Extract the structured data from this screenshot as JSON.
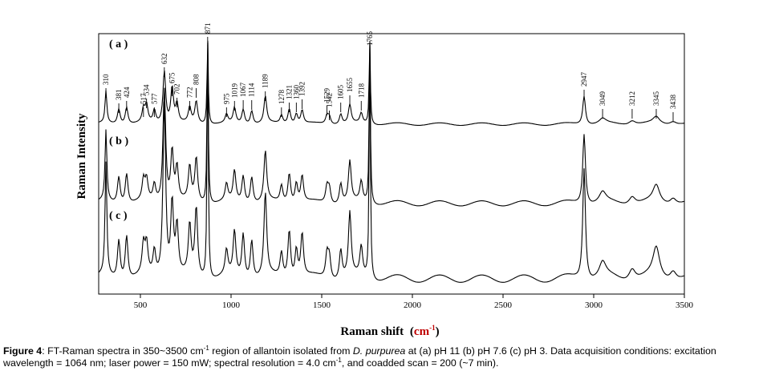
{
  "chart_data": {
    "type": "line",
    "xlabel_main": "Raman shift",
    "xlabel_unit_open": "(",
    "xlabel_unit": "cm",
    "xlabel_unit_sup": "-1",
    "xlabel_unit_close": ")",
    "ylabel": "Raman Intensity",
    "xlim": [
      270,
      3500
    ],
    "xticks": [
      500,
      1000,
      1500,
      2000,
      2500,
      3000,
      3500
    ],
    "xtick_labels": [
      "500",
      "1000",
      "1500",
      "2000",
      "2500",
      "3000",
      "3500"
    ],
    "grid": false,
    "legend": "none",
    "line_color": "#000000",
    "series": [
      {
        "name": "( a )",
        "peaks": [
          [
            310,
            0.38
          ],
          [
            381,
            0.18
          ],
          [
            424,
            0.2
          ],
          [
            517,
            0.16
          ],
          [
            534,
            0.2
          ],
          [
            577,
            0.15
          ],
          [
            632,
            0.62
          ],
          [
            675,
            0.42
          ],
          [
            702,
            0.22
          ],
          [
            772,
            0.18
          ],
          [
            808,
            0.26
          ],
          [
            871,
            1.0
          ],
          [
            975,
            0.1
          ],
          [
            1019,
            0.18
          ],
          [
            1067,
            0.17
          ],
          [
            1114,
            0.16
          ],
          [
            1189,
            0.32
          ],
          [
            1278,
            0.1
          ],
          [
            1321,
            0.18
          ],
          [
            1360,
            0.12
          ],
          [
            1392,
            0.16
          ],
          [
            1529,
            0.1
          ],
          [
            1542,
            0.09
          ],
          [
            1605,
            0.12
          ],
          [
            1655,
            0.22
          ],
          [
            1718,
            0.12
          ],
          [
            1765,
            0.98
          ],
          [
            2947,
            0.34
          ],
          [
            3049,
            0.06
          ],
          [
            3212,
            0.05
          ],
          [
            3345,
            0.08
          ],
          [
            3438,
            0.04
          ]
        ]
      },
      {
        "name": "( b )",
        "peaks": [
          [
            310,
            0.42
          ],
          [
            381,
            0.16
          ],
          [
            424,
            0.18
          ],
          [
            517,
            0.12
          ],
          [
            534,
            0.12
          ],
          [
            577,
            0.1
          ],
          [
            632,
            0.68
          ],
          [
            675,
            0.3
          ],
          [
            702,
            0.2
          ],
          [
            772,
            0.2
          ],
          [
            808,
            0.26
          ],
          [
            871,
            1.0
          ],
          [
            975,
            0.1
          ],
          [
            1019,
            0.18
          ],
          [
            1067,
            0.16
          ],
          [
            1114,
            0.16
          ],
          [
            1189,
            0.3
          ],
          [
            1278,
            0.1
          ],
          [
            1321,
            0.18
          ],
          [
            1360,
            0.12
          ],
          [
            1392,
            0.16
          ],
          [
            1529,
            0.1
          ],
          [
            1542,
            0.09
          ],
          [
            1605,
            0.12
          ],
          [
            1655,
            0.24
          ],
          [
            1718,
            0.12
          ],
          [
            1765,
            0.98
          ],
          [
            2947,
            0.42
          ],
          [
            3049,
            0.06
          ],
          [
            3212,
            0.05
          ],
          [
            3345,
            0.1
          ],
          [
            3438,
            0.04
          ]
        ]
      },
      {
        "name": "( c )",
        "peaks": [
          [
            310,
            0.46
          ],
          [
            381,
            0.16
          ],
          [
            424,
            0.18
          ],
          [
            517,
            0.12
          ],
          [
            534,
            0.12
          ],
          [
            577,
            0.1
          ],
          [
            632,
            0.72
          ],
          [
            675,
            0.3
          ],
          [
            702,
            0.2
          ],
          [
            772,
            0.2
          ],
          [
            808,
            0.28
          ],
          [
            871,
            1.0
          ],
          [
            975,
            0.1
          ],
          [
            1019,
            0.18
          ],
          [
            1067,
            0.18
          ],
          [
            1114,
            0.16
          ],
          [
            1189,
            0.34
          ],
          [
            1278,
            0.1
          ],
          [
            1321,
            0.2
          ],
          [
            1360,
            0.12
          ],
          [
            1392,
            0.18
          ],
          [
            1529,
            0.1
          ],
          [
            1542,
            0.09
          ],
          [
            1605,
            0.12
          ],
          [
            1655,
            0.26
          ],
          [
            1718,
            0.12
          ],
          [
            1765,
            0.98
          ],
          [
            2947,
            0.46
          ],
          [
            3049,
            0.06
          ],
          [
            3212,
            0.05
          ],
          [
            3345,
            0.12
          ],
          [
            3438,
            0.04
          ]
        ]
      }
    ],
    "annotations": [
      {
        "x": 310,
        "label": "310"
      },
      {
        "x": 381,
        "label": "381"
      },
      {
        "x": 424,
        "label": "424"
      },
      {
        "x": 517,
        "label": "517"
      },
      {
        "x": 534,
        "label": "534"
      },
      {
        "x": 577,
        "label": "577"
      },
      {
        "x": 632,
        "label": "632"
      },
      {
        "x": 675,
        "label": "675"
      },
      {
        "x": 702,
        "label": "702"
      },
      {
        "x": 772,
        "label": "772"
      },
      {
        "x": 808,
        "label": "808"
      },
      {
        "x": 871,
        "label": "871"
      },
      {
        "x": 975,
        "label": "975"
      },
      {
        "x": 1019,
        "label": "1019"
      },
      {
        "x": 1067,
        "label": "1067"
      },
      {
        "x": 1114,
        "label": "1114"
      },
      {
        "x": 1189,
        "label": "1189"
      },
      {
        "x": 1278,
        "label": "1278"
      },
      {
        "x": 1321,
        "label": "1321"
      },
      {
        "x": 1360,
        "label": "1360"
      },
      {
        "x": 1392,
        "label": "1392"
      },
      {
        "x": 1529,
        "label": "1529"
      },
      {
        "x": 1542,
        "label": "1542"
      },
      {
        "x": 1605,
        "label": "1605"
      },
      {
        "x": 1655,
        "label": "1655"
      },
      {
        "x": 1718,
        "label": "1718"
      },
      {
        "x": 1765,
        "label": "1765"
      },
      {
        "x": 2947,
        "label": "2947"
      },
      {
        "x": 3049,
        "label": "3049"
      },
      {
        "x": 3212,
        "label": "3212"
      },
      {
        "x": 3345,
        "label": "3345"
      },
      {
        "x": 3438,
        "label": "3438"
      }
    ]
  },
  "caption": {
    "figure_label": "Figure 4",
    "p1": ": FT-Raman spectra in 350~3500 cm",
    "sup1": "-1",
    "p2": " region of allantoin isolated from ",
    "species": "D. purpurea",
    "p3": " at (a) pH 11 (b) pH 7.6 (c) pH 3. Data acquisition conditions: excitation wavelength = 1064 nm; laser power = 150 mW; spectral resolution = 4.0 cm",
    "sup2": "-1",
    "p4": ", and coadded scan = 200 (~7 min)."
  }
}
